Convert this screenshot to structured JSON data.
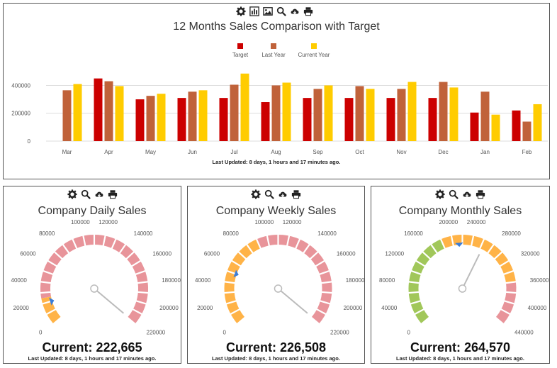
{
  "colors": {
    "target": "#cc0000",
    "last_year": "#c0623a",
    "current_year": "#ffcc00",
    "grid": "#dddddd",
    "axis_text": "#555555",
    "needle": "#bbbbbb",
    "pointer": "#3b7dd8"
  },
  "toolbar_icons": [
    "gear-icon",
    "bar-chart-icon",
    "image-icon",
    "search-icon",
    "cloud-download-icon",
    "print-icon"
  ],
  "gauge_toolbar_icons": [
    "gear-icon",
    "search-icon",
    "cloud-download-icon",
    "print-icon"
  ],
  "main_chart": {
    "updated": "Last Updated: 8 days, 1 hours and 17 minutes ago."
  },
  "chart_data": [
    {
      "type": "bar",
      "title": "12 Months Sales Comparison with Target",
      "categories": [
        "Mar",
        "Apr",
        "May",
        "Jun",
        "Jul",
        "Aug",
        "Sep",
        "Oct",
        "Nov",
        "Dec",
        "Jan",
        "Feb"
      ],
      "series": [
        {
          "name": "Target",
          "color": "#cc0000",
          "values": [
            null,
            450000,
            300000,
            310000,
            310000,
            280000,
            310000,
            310000,
            310000,
            310000,
            205000,
            220000
          ]
        },
        {
          "name": "Last Year",
          "color": "#c0623a",
          "values": [
            365000,
            430000,
            325000,
            355000,
            405000,
            400000,
            375000,
            395000,
            375000,
            425000,
            355000,
            140000
          ]
        },
        {
          "name": "Current Year",
          "color": "#ffcc00",
          "values": [
            410000,
            395000,
            340000,
            365000,
            485000,
            420000,
            400000,
            375000,
            425000,
            385000,
            190000,
            265000
          ]
        }
      ],
      "yticks": [
        0,
        200000,
        400000
      ],
      "ylim": [
        0,
        550000
      ],
      "legend_position": "top-center",
      "grid": true
    },
    {
      "type": "gauge",
      "title": "Company Daily Sales",
      "min": 0,
      "max": 220000,
      "ticks": [
        0,
        20000,
        40000,
        60000,
        80000,
        100000,
        120000,
        140000,
        160000,
        180000,
        200000,
        220000
      ],
      "bands": [
        {
          "from": 0,
          "to": 25000,
          "color": "#ffb347"
        },
        {
          "from": 25000,
          "to": 220000,
          "color": "#e8949a"
        }
      ],
      "value": 222665,
      "pointer": 20000,
      "current_label": "Current:",
      "current_value": "222,665",
      "updated": "Last Updated: 8 days, 1 hours and 17 minutes ago."
    },
    {
      "type": "gauge",
      "title": "Company Weekly Sales",
      "min": 0,
      "max": 220000,
      "ticks": [
        0,
        20000,
        40000,
        60000,
        80000,
        100000,
        120000,
        140000,
        160000,
        180000,
        200000,
        220000
      ],
      "bands": [
        {
          "from": 0,
          "to": 90000,
          "color": "#ffb347"
        },
        {
          "from": 90000,
          "to": 220000,
          "color": "#e8949a"
        }
      ],
      "value": 226508,
      "pointer": 50000,
      "current_label": "Current:",
      "current_value": "226,508",
      "updated": "Last Updated: 8 days, 1 hours and 17 minutes ago."
    },
    {
      "type": "gauge",
      "title": "Company Monthly Sales",
      "min": 0,
      "max": 440000,
      "ticks": [
        0,
        40000,
        80000,
        120000,
        160000,
        200000,
        240000,
        280000,
        320000,
        360000,
        400000,
        440000
      ],
      "bands": [
        {
          "from": 0,
          "to": 180000,
          "color": "#a1c75a"
        },
        {
          "from": 180000,
          "to": 360000,
          "color": "#ffb347"
        },
        {
          "from": 360000,
          "to": 440000,
          "color": "#e8949a"
        }
      ],
      "value": 264570,
      "pointer": 213000,
      "current_label": "Current:",
      "current_value": "264,570",
      "updated": "Last Updated: 8 days, 1 hours and 17 minutes ago."
    }
  ]
}
